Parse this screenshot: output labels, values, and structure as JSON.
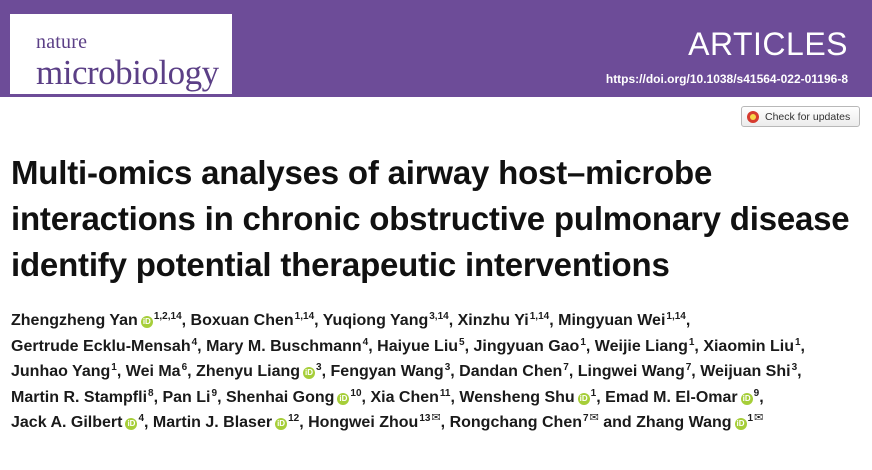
{
  "header": {
    "journal_line1": "nature",
    "journal_line2": "microbiology",
    "article_type": "ARTICLES",
    "doi": "https://doi.org/10.1038/s41564-022-01196-8",
    "accent_color": "#6d4c98"
  },
  "check_updates": {
    "label": "Check for updates"
  },
  "title": "Multi-omics analyses of airway host–microbe interactions in chronic obstructive pulmonary disease identify potential therapeutic interventions",
  "authors": [
    {
      "name": "Zhengzheng Yan",
      "orcid": true,
      "aff": "1,2,14",
      "email": false
    },
    {
      "name": "Boxuan Chen",
      "orcid": false,
      "aff": "1,14",
      "email": false
    },
    {
      "name": "Yuqiong Yang",
      "orcid": false,
      "aff": "3,14",
      "email": false
    },
    {
      "name": "Xinzhu Yi",
      "orcid": false,
      "aff": "1,14",
      "email": false
    },
    {
      "name": "Mingyuan Wei",
      "orcid": false,
      "aff": "1,14",
      "email": false
    },
    {
      "name": "Gertrude Ecklu-Mensah",
      "orcid": false,
      "aff": "4",
      "email": false
    },
    {
      "name": "Mary M. Buschmann",
      "orcid": false,
      "aff": "4",
      "email": false
    },
    {
      "name": "Haiyue Liu",
      "orcid": false,
      "aff": "5",
      "email": false
    },
    {
      "name": "Jingyuan Gao",
      "orcid": false,
      "aff": "1",
      "email": false
    },
    {
      "name": "Weijie Liang",
      "orcid": false,
      "aff": "1",
      "email": false
    },
    {
      "name": "Xiaomin Liu",
      "orcid": false,
      "aff": "1",
      "email": false
    },
    {
      "name": "Junhao Yang",
      "orcid": false,
      "aff": "1",
      "email": false
    },
    {
      "name": "Wei Ma",
      "orcid": false,
      "aff": "6",
      "email": false
    },
    {
      "name": "Zhenyu Liang",
      "orcid": true,
      "aff": "3",
      "email": false
    },
    {
      "name": "Fengyan Wang",
      "orcid": false,
      "aff": "3",
      "email": false
    },
    {
      "name": "Dandan Chen",
      "orcid": false,
      "aff": "7",
      "email": false
    },
    {
      "name": "Lingwei Wang",
      "orcid": false,
      "aff": "7",
      "email": false
    },
    {
      "name": "Weijuan Shi",
      "orcid": false,
      "aff": "3",
      "email": false
    },
    {
      "name": "Martin R. Stampfli",
      "orcid": false,
      "aff": "8",
      "email": false
    },
    {
      "name": "Pan Li",
      "orcid": false,
      "aff": "9",
      "email": false
    },
    {
      "name": "Shenhai Gong",
      "orcid": true,
      "aff": "10",
      "email": false
    },
    {
      "name": "Xia Chen",
      "orcid": false,
      "aff": "11",
      "email": false
    },
    {
      "name": "Wensheng Shu",
      "orcid": true,
      "aff": "1",
      "email": false
    },
    {
      "name": "Emad M. El-Omar",
      "orcid": true,
      "aff": "9",
      "email": false
    },
    {
      "name": "Jack A. Gilbert",
      "orcid": true,
      "aff": "4",
      "email": false
    },
    {
      "name": "Martin J. Blaser",
      "orcid": true,
      "aff": "12",
      "email": false
    },
    {
      "name": "Hongwei Zhou",
      "orcid": false,
      "aff": "13",
      "email": true
    },
    {
      "name": "Rongchang Chen",
      "orcid": false,
      "aff": "7",
      "email": true
    },
    {
      "name": "Zhang Wang",
      "orcid": true,
      "aff": "1",
      "email": true
    }
  ],
  "author_final_conjunction": "and"
}
